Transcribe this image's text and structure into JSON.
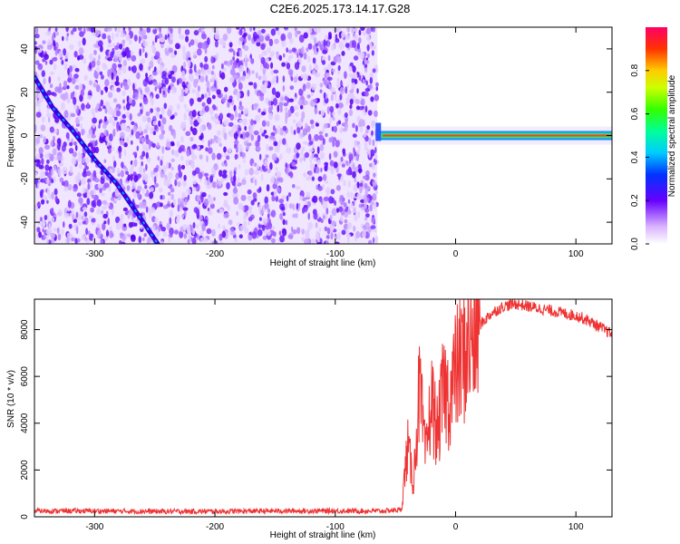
{
  "title": "C2E6.2025.173.14.17.G28",
  "chart_data": [
    {
      "type": "heatmap",
      "xlabel": "Height of straight line (km)",
      "ylabel": "Frequency (Hz)",
      "xlim": [
        -350,
        130
      ],
      "ylim": [
        -50,
        50
      ],
      "x_ticks": [
        "-300",
        "-200",
        "-100",
        "0",
        "100"
      ],
      "y_ticks": [
        "-40",
        "-20",
        "0",
        "20",
        "40"
      ],
      "colorbar_label": "Normalized spectral amplitude",
      "colorbar_ticks": [
        "0.0",
        "0.2",
        "0.4",
        "0.6",
        "0.8"
      ],
      "colorbar_range": [
        0,
        1
      ],
      "noise_region_x": [
        -350,
        -65
      ],
      "diagonal_track": [
        [
          -350,
          27
        ],
        [
          -335,
          13
        ],
        [
          -318,
          2
        ],
        [
          -300,
          -11
        ],
        [
          -282,
          -22
        ],
        [
          -262,
          -38
        ],
        [
          -245,
          -52
        ]
      ],
      "signal_band": {
        "x": [
          -65,
          130
        ],
        "frequency": 0,
        "amplitude": 0.9
      }
    },
    {
      "type": "line",
      "xlabel": "Height of straight line (km)",
      "ylabel": "SNR (10 * v/v)",
      "xlim": [
        -350,
        130
      ],
      "ylim": [
        0,
        9300
      ],
      "x_ticks": [
        "-300",
        "-200",
        "-100",
        "0",
        "100"
      ],
      "y_ticks": [
        "0",
        "2000",
        "4000",
        "6000",
        "8000"
      ],
      "color": "#ee3333",
      "series": [
        {
          "x": [
            -350,
            -300,
            -250,
            -200,
            -150,
            -100,
            -60,
            -45,
            -40,
            -35,
            -30,
            -25,
            -20,
            -15,
            -10,
            -5,
            0,
            10,
            20,
            30,
            40,
            50,
            60,
            70,
            80,
            90,
            100,
            110,
            120,
            130
          ],
          "y": [
            250,
            250,
            230,
            230,
            250,
            250,
            250,
            300,
            3000,
            1500,
            5500,
            2500,
            5000,
            3500,
            5500,
            5000,
            6200,
            7200,
            8200,
            8700,
            9000,
            9100,
            9000,
            8900,
            8800,
            8700,
            8600,
            8400,
            8100,
            7800
          ]
        }
      ]
    }
  ]
}
